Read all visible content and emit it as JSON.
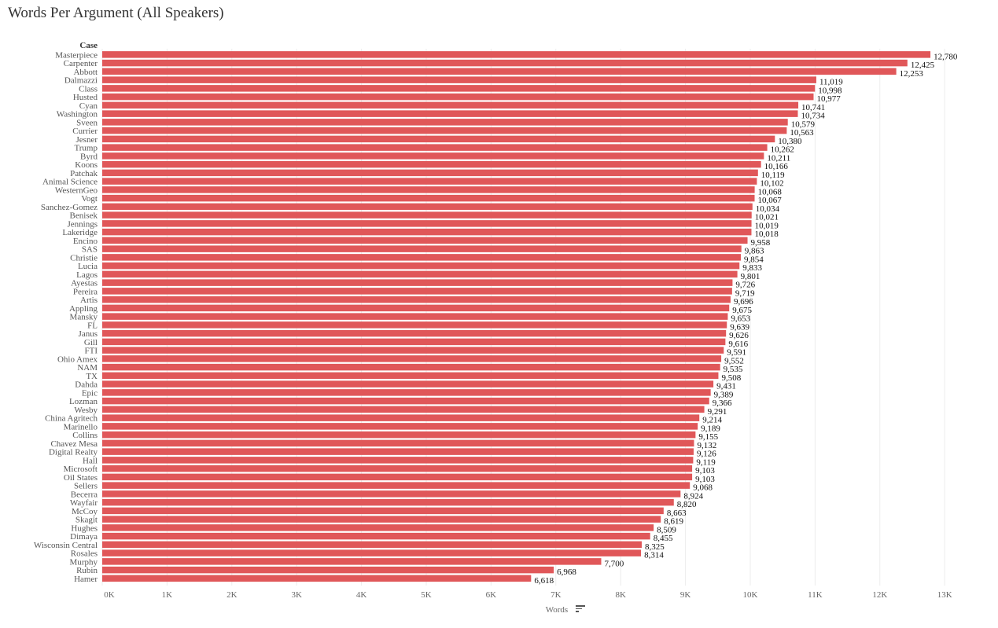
{
  "chart_data": {
    "type": "bar",
    "orientation": "horizontal",
    "title": "Words Per Argument (All Speakers)",
    "ylabel": "Case",
    "xlabel": "Words",
    "xlim": [
      0,
      13500
    ],
    "xticks": [
      0,
      1000,
      2000,
      3000,
      4000,
      5000,
      6000,
      7000,
      8000,
      9000,
      10000,
      11000,
      12000,
      13000
    ],
    "xtick_labels": [
      "0K",
      "1K",
      "2K",
      "3K",
      "4K",
      "5K",
      "6K",
      "7K",
      "8K",
      "9K",
      "10K",
      "11K",
      "12K",
      "13K"
    ],
    "bar_color": "#e05759",
    "grid": true,
    "categories": [
      "Masterpiece",
      "Carpenter",
      "Abbott",
      "Dalmazzi",
      "Class",
      "Husted",
      "Cyan",
      "Washington",
      "Sveen",
      "Currier",
      "Jesner",
      "Trump",
      "Byrd",
      "Koons",
      "Patchak",
      "Animal Science",
      "WesternGeo",
      "Vogt",
      "Sanchez-Gomez",
      "Benisek",
      "Jennings",
      "Lakeridge",
      "Encino",
      "SAS",
      "Christie",
      "Lucia",
      "Lagos",
      "Ayestas",
      "Pereira",
      "Artis",
      "Appling",
      "Mansky",
      "FL",
      "Janus",
      "Gill",
      "FTI",
      "Ohio Amex",
      "NAM",
      "TX",
      "Dahda",
      "Epic",
      "Lozman",
      "Wesby",
      "China Agritech",
      "Marinello",
      "Collins",
      "Chavez Mesa",
      "Digital Realty",
      "Hall",
      "Microsoft",
      "Oil States",
      "Sellers",
      "Becerra",
      "Wayfair",
      "McCoy",
      "Skagit",
      "Hughes",
      "Dimaya",
      "Wisconsin Central",
      "Rosales",
      "Murphy",
      "Rubin",
      "Hamer"
    ],
    "values": [
      12780,
      12425,
      12253,
      11019,
      10998,
      10977,
      10741,
      10734,
      10579,
      10563,
      10380,
      10262,
      10211,
      10166,
      10119,
      10102,
      10068,
      10067,
      10034,
      10021,
      10019,
      10018,
      9958,
      9863,
      9854,
      9833,
      9801,
      9726,
      9719,
      9696,
      9675,
      9653,
      9639,
      9626,
      9616,
      9591,
      9552,
      9535,
      9508,
      9431,
      9389,
      9366,
      9291,
      9214,
      9189,
      9155,
      9132,
      9126,
      9119,
      9103,
      9103,
      9068,
      8924,
      8820,
      8663,
      8619,
      8509,
      8455,
      8325,
      8314,
      7700,
      6968,
      6618
    ],
    "value_labels": [
      "12,780",
      "12,425",
      "12,253",
      "11,019",
      "10,998",
      "10,977",
      "10,741",
      "10,734",
      "10,579",
      "10,563",
      "10,380",
      "10,262",
      "10,211",
      "10,166",
      "10,119",
      "10,102",
      "10,068",
      "10,067",
      "10,034",
      "10,021",
      "10,019",
      "10,018",
      "9,958",
      "9,863",
      "9,854",
      "9,833",
      "9,801",
      "9,726",
      "9,719",
      "9,696",
      "9,675",
      "9,653",
      "9,639",
      "9,626",
      "9,616",
      "9,591",
      "9,552",
      "9,535",
      "9,508",
      "9,431",
      "9,389",
      "9,366",
      "9,291",
      "9,214",
      "9,189",
      "9,155",
      "9,132",
      "9,126",
      "9,119",
      "9,103",
      "9,103",
      "9,068",
      "8,924",
      "8,820",
      "8,663",
      "8,619",
      "8,509",
      "8,455",
      "8,325",
      "8,314",
      "7,700",
      "6,968",
      "6,618"
    ],
    "sort_icon": "sort-descending-icon"
  }
}
